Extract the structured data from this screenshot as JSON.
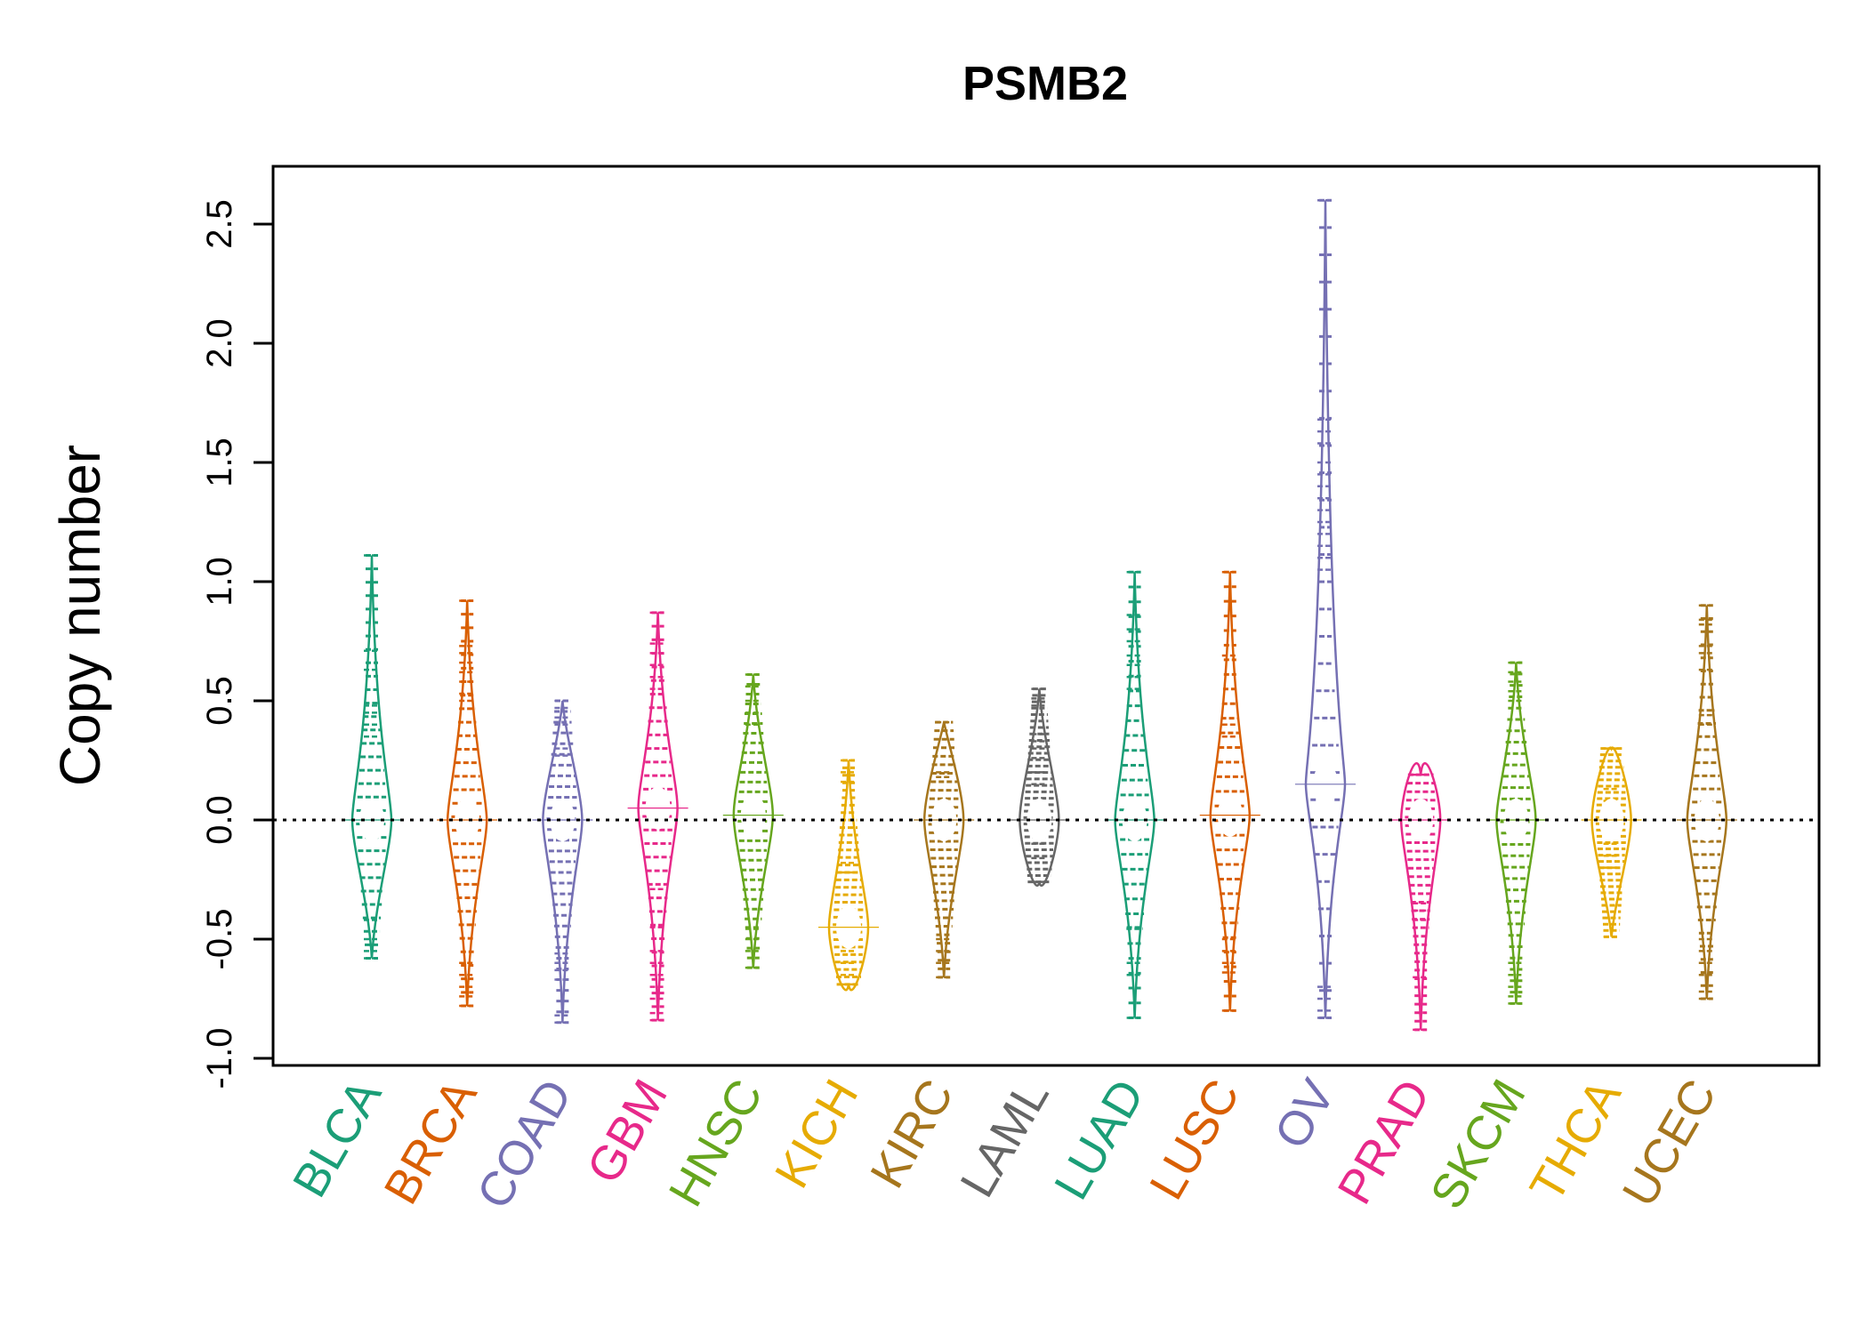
{
  "chart_data": {
    "type": "beanplot",
    "title": "PSMB2",
    "xlabel": "",
    "ylabel": "Copy number",
    "ylim": [
      -1.0,
      2.75
    ],
    "yticks": [
      -1.0,
      -0.5,
      0.0,
      0.5,
      1.0,
      1.5,
      2.0,
      2.5
    ],
    "ytick_labels": [
      "-1.0",
      "-0.5",
      "0.0",
      "0.5",
      "1.0",
      "1.5",
      "2.0",
      "2.5"
    ],
    "reference_line": 0.0,
    "series": [
      {
        "name": "BLCA",
        "color": "#1B9E77",
        "min": -0.58,
        "max": 1.11,
        "mode": 0.0,
        "outliers": [
          1.11,
          0.71,
          0.63,
          0.48,
          0.45,
          0.4,
          0.35,
          -0.42,
          -0.5,
          -0.55,
          -0.58
        ]
      },
      {
        "name": "BRCA",
        "color": "#D95F02",
        "min": -0.78,
        "max": 0.92,
        "mode": 0.0,
        "outliers": [
          0.92,
          0.73,
          0.7,
          0.66,
          0.62,
          0.58,
          0.53,
          0.5,
          -0.6,
          -0.65,
          -0.7,
          -0.74,
          -0.78
        ]
      },
      {
        "name": "COAD",
        "color": "#7570B3",
        "min": -0.85,
        "max": 0.5,
        "mode": 0.0,
        "outliers": [
          0.5,
          0.47,
          0.43,
          0.4,
          0.3,
          0.27,
          -0.56,
          -0.6,
          -0.63,
          -0.67,
          -0.82,
          -0.85
        ]
      },
      {
        "name": "GBM",
        "color": "#E7298A",
        "min": -0.84,
        "max": 0.87,
        "mode": 0.05,
        "outliers": [
          0.87,
          0.74,
          0.7,
          0.65,
          0.6,
          0.55,
          -0.29,
          -0.45,
          -0.55,
          -0.6,
          -0.65,
          -0.7,
          -0.75,
          -0.81,
          -0.84
        ]
      },
      {
        "name": "HNSC",
        "color": "#66A61E",
        "min": -0.62,
        "max": 0.61,
        "mode": 0.02,
        "outliers": [
          0.61,
          0.56,
          0.5,
          0.45,
          0.4,
          -0.45,
          -0.5,
          -0.55,
          -0.62
        ]
      },
      {
        "name": "KICH",
        "color": "#E6AB02",
        "min": -0.69,
        "max": 0.25,
        "mode": -0.45,
        "outliers": [
          0.25,
          0.2,
          0.16,
          0.0,
          -0.18,
          -0.22,
          -0.55,
          -0.6,
          -0.65,
          -0.69
        ]
      },
      {
        "name": "KIRC",
        "color": "#A6761D",
        "min": -0.66,
        "max": 0.41,
        "mode": 0.0,
        "outliers": [
          0.41,
          0.2,
          0.18,
          -0.5,
          -0.55,
          -0.6,
          -0.66
        ]
      },
      {
        "name": "LAML",
        "color": "#666666",
        "min": -0.26,
        "max": 0.55,
        "mode": 0.0,
        "outliers": [
          0.55,
          0.51,
          0.48,
          0.36,
          0.33,
          0.3,
          0.26,
          0.2,
          0.15,
          -0.1,
          -0.16,
          -0.26
        ]
      },
      {
        "name": "LUAD",
        "color": "#1B9E77",
        "min": -0.83,
        "max": 1.04,
        "mode": 0.0,
        "outliers": [
          1.04,
          0.86,
          0.8,
          0.75,
          0.69,
          0.65,
          0.6,
          0.55,
          -0.45,
          -0.6,
          -0.65,
          -0.83
        ]
      },
      {
        "name": "LUSC",
        "color": "#D95F02",
        "min": -0.8,
        "max": 1.04,
        "mode": 0.02,
        "outliers": [
          1.04,
          0.69,
          0.4,
          0.35,
          -0.5,
          -0.55,
          -0.6,
          -0.64,
          -0.8
        ]
      },
      {
        "name": "OV",
        "color": "#7570B3",
        "min": -0.83,
        "max": 2.6,
        "mode": 0.15,
        "outliers": [
          2.6,
          1.68,
          1.63,
          1.58,
          1.5,
          1.45,
          1.4,
          1.35,
          1.3,
          1.25,
          1.2,
          1.15,
          1.1,
          1.05,
          -0.7,
          -0.75,
          -0.8,
          -0.83
        ]
      },
      {
        "name": "PRAD",
        "color": "#E7298A",
        "min": -0.88,
        "max": 0.19,
        "mode": 0.0,
        "outliers": [
          0.19,
          -0.35,
          -0.38,
          -0.42,
          -0.66,
          -0.88
        ]
      },
      {
        "name": "SKCM",
        "color": "#66A61E",
        "min": -0.77,
        "max": 0.66,
        "mode": 0.0,
        "outliers": [
          0.66,
          0.62,
          0.58,
          0.54,
          0.5,
          -0.6,
          -0.65,
          -0.7,
          -0.74,
          -0.77
        ]
      },
      {
        "name": "THCA",
        "color": "#E6AB02",
        "min": -0.49,
        "max": 0.3,
        "mode": 0.0,
        "outliers": [
          0.3,
          0.13,
          0.08,
          -0.1,
          -0.15,
          -0.2,
          -0.49
        ]
      },
      {
        "name": "UCEC",
        "color": "#A6761D",
        "min": -0.75,
        "max": 0.9,
        "mode": 0.0,
        "outliers": [
          0.9,
          0.84,
          0.82,
          0.73,
          0.7,
          0.63,
          0.44,
          0.4,
          -0.5,
          -0.55,
          -0.6,
          -0.65,
          -0.72,
          -0.75
        ]
      }
    ]
  }
}
